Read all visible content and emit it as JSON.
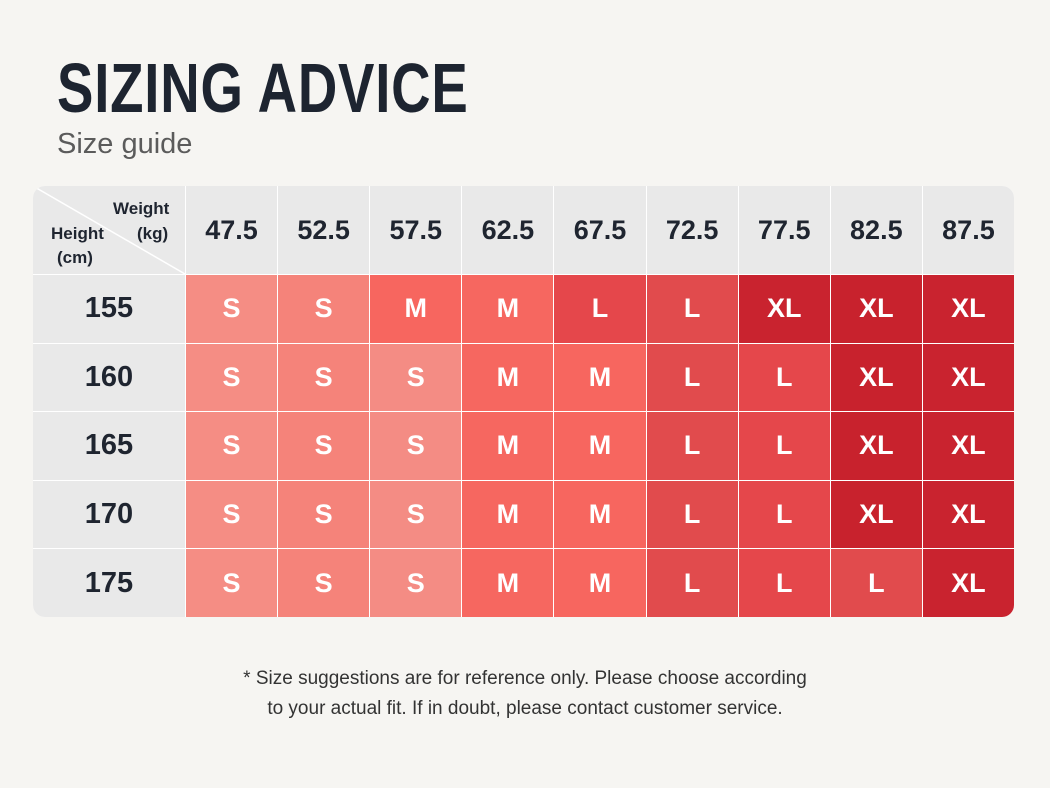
{
  "header": {
    "title": "SIZING ADVICE",
    "subtitle": "Size guide"
  },
  "table": {
    "corner": {
      "weight": "Weight",
      "weight_unit": "(kg)",
      "height": "Height",
      "height_unit": "(cm)"
    },
    "columns": [
      "47.5",
      "52.5",
      "57.5",
      "62.5",
      "67.5",
      "72.5",
      "77.5",
      "82.5",
      "87.5"
    ],
    "rows": [
      {
        "height": "155",
        "sizes": [
          "S",
          "S",
          "M",
          "M",
          "L",
          "L",
          "XL",
          "XL",
          "XL"
        ]
      },
      {
        "height": "160",
        "sizes": [
          "S",
          "S",
          "S",
          "M",
          "M",
          "L",
          "L",
          "XL",
          "XL"
        ]
      },
      {
        "height": "165",
        "sizes": [
          "S",
          "S",
          "S",
          "M",
          "M",
          "L",
          "L",
          "XL",
          "XL"
        ]
      },
      {
        "height": "170",
        "sizes": [
          "S",
          "S",
          "S",
          "M",
          "M",
          "L",
          "L",
          "XL",
          "XL"
        ]
      },
      {
        "height": "175",
        "sizes": [
          "S",
          "S",
          "S",
          "M",
          "M",
          "L",
          "L",
          "L",
          "XL"
        ]
      }
    ]
  },
  "footnote": {
    "lines": [
      "* Size suggestions are for reference only. Please choose according",
      "to your actual fit. If in doubt, please contact customer service."
    ]
  }
}
